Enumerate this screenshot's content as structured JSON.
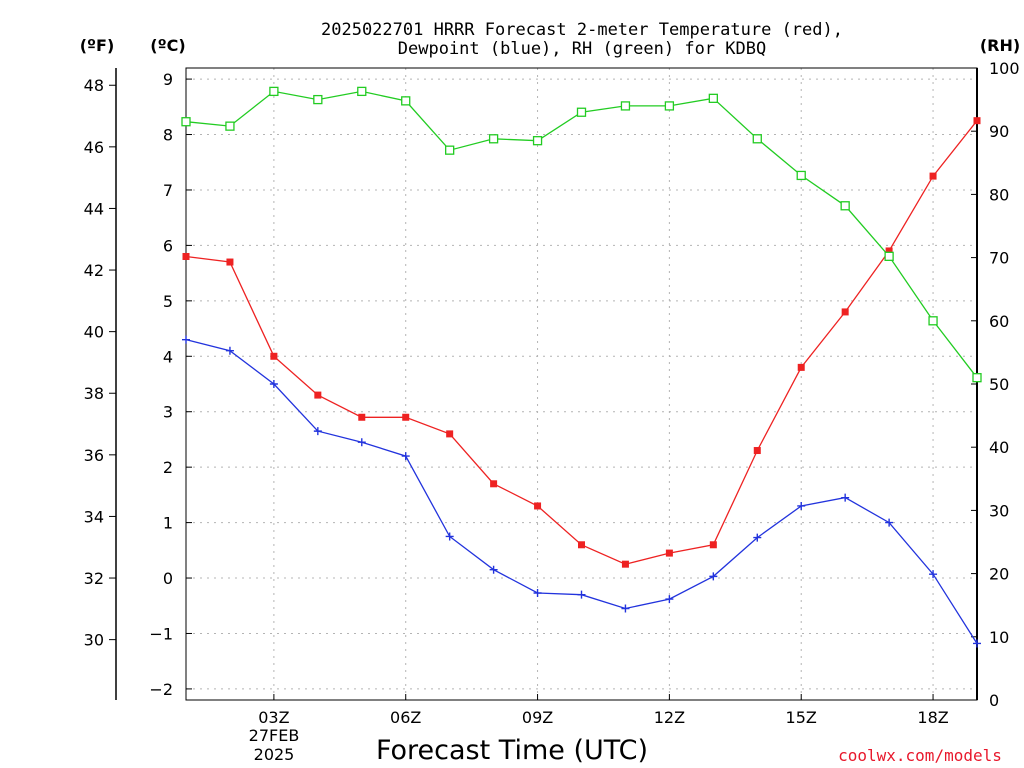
{
  "chart_data": {
    "type": "line",
    "title_line1": "2025022701 HRRR Forecast 2-meter Temperature (red),",
    "title_line2": "Dewpoint (blue), RH (green) for KDBQ",
    "xlabel": "Forecast Time (UTC)",
    "credit": "coolwx.com/models",
    "units": {
      "fahrenheit": "(ºF)",
      "celsius": "(ºC)",
      "rh": "(RH)"
    },
    "x_hours": [
      1,
      2,
      3,
      4,
      5,
      6,
      7,
      8,
      9,
      10,
      11,
      12,
      13,
      14,
      15,
      16,
      17,
      18,
      19
    ],
    "x_ticks": [
      {
        "hour": 3,
        "label": "03Z"
      },
      {
        "hour": 6,
        "label": "06Z"
      },
      {
        "hour": 9,
        "label": "09Z"
      },
      {
        "hour": 12,
        "label": "12Z"
      },
      {
        "hour": 15,
        "label": "15Z"
      },
      {
        "hour": 18,
        "label": "18Z"
      }
    ],
    "date_label_line1": "27FEB",
    "date_label_line2": "2025",
    "xlim": [
      1,
      19
    ],
    "celsius_axis": {
      "ylim": [
        -2.2,
        9.2
      ],
      "ticks": [
        -2,
        -1,
        0,
        1,
        2,
        3,
        4,
        5,
        6,
        7,
        8,
        9
      ]
    },
    "fahrenheit_axis": {
      "ticks": [
        30,
        32,
        34,
        36,
        38,
        40,
        42,
        44,
        46,
        48
      ]
    },
    "rh_axis": {
      "ylim": [
        0,
        100
      ],
      "ticks": [
        0,
        10,
        20,
        30,
        40,
        50,
        60,
        70,
        80,
        90,
        100
      ]
    },
    "grid": true,
    "series": [
      {
        "name": "Temperature",
        "axis": "celsius",
        "color": "#ee2222",
        "marker": "filled-square",
        "values": [
          5.8,
          5.7,
          4.0,
          3.3,
          2.9,
          2.9,
          2.6,
          1.7,
          1.3,
          0.6,
          0.25,
          0.45,
          0.6,
          2.3,
          3.8,
          4.8,
          5.9,
          7.25,
          8.25
        ]
      },
      {
        "name": "Dewpoint",
        "axis": "celsius",
        "color": "#2233dd",
        "marker": "plus",
        "values": [
          4.3,
          4.1,
          3.5,
          2.65,
          2.45,
          2.2,
          0.75,
          0.15,
          -0.27,
          -0.3,
          -0.55,
          -0.38,
          0.03,
          0.73,
          1.3,
          1.45,
          1.0,
          0.07,
          -1.18
        ]
      },
      {
        "name": "RH",
        "axis": "rh",
        "color": "#22cc22",
        "marker": "open-square",
        "values": [
          91.5,
          90.8,
          96.3,
          95.0,
          96.3,
          94.8,
          87.0,
          88.8,
          88.5,
          93.0,
          94.0,
          94.0,
          95.2,
          88.8,
          83.0,
          78.2,
          70.2,
          60.0,
          51.0
        ]
      }
    ]
  }
}
